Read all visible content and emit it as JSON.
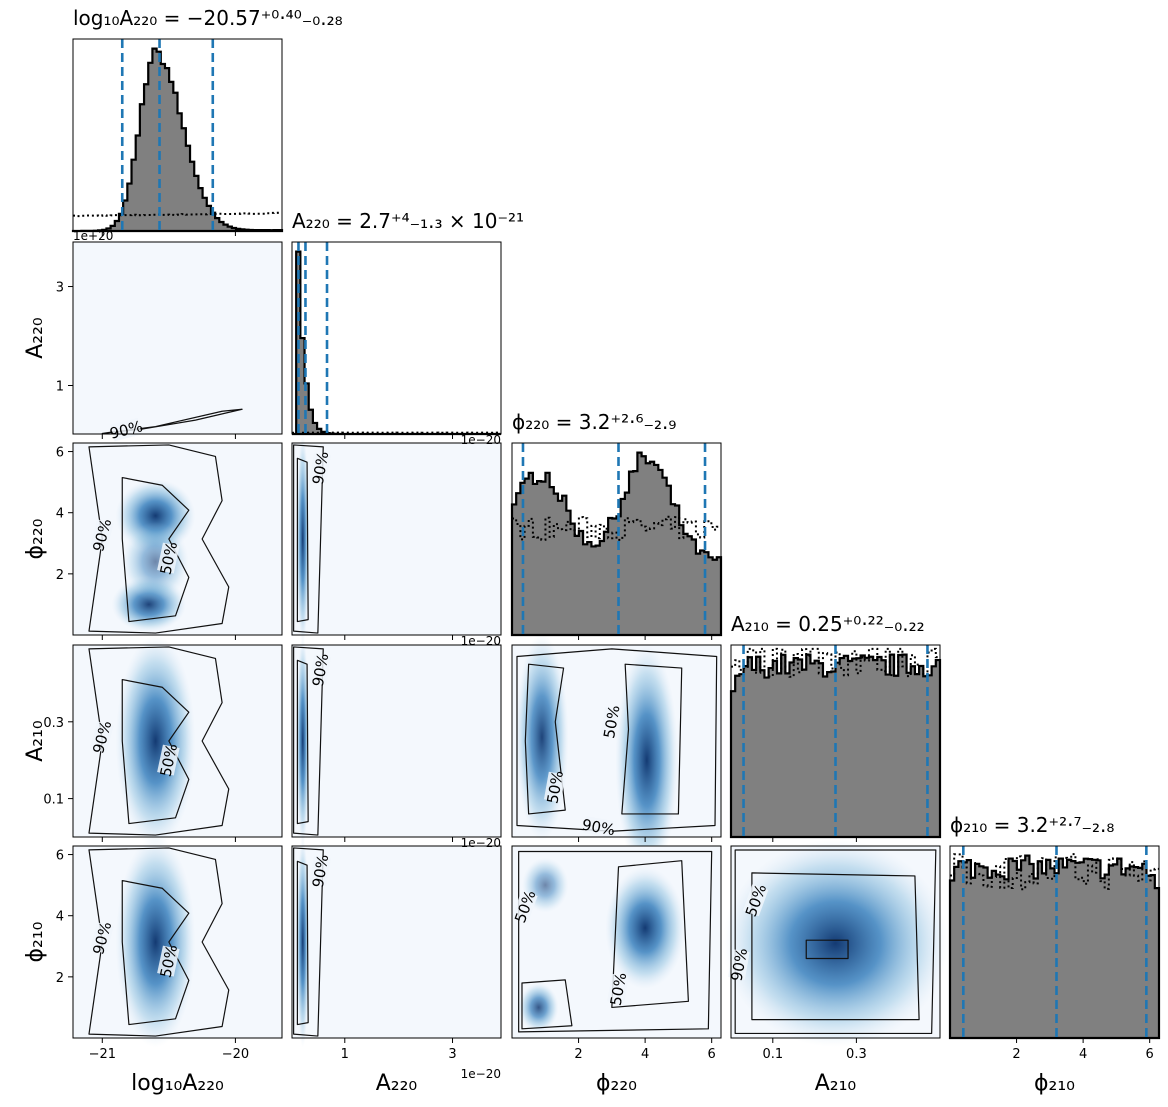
{
  "chart_data": {
    "type": "corner",
    "parameters": [
      {
        "key": "log10A220",
        "axis_label": "log₁₀A₂₂₀",
        "title": "log₁₀A₂₂₀ = −20.57⁺⁰·⁴⁰₋₀.₂₈",
        "range": [
          -21.22,
          -19.65
        ],
        "ticks": [
          -21,
          -20
        ],
        "tick_labels": [
          "−21",
          "−20"
        ],
        "median": -20.57,
        "q_low": -20.85,
        "q_high": -20.17,
        "offset_text": ""
      },
      {
        "key": "A220",
        "axis_label": "A₂₂₀",
        "title": "A₂₂₀ = 2.7⁺⁴₋₁.₃ × 10⁻²¹",
        "range": [
          0.02,
          3.9
        ],
        "ticks": [
          1,
          3
        ],
        "tick_labels": [
          "1",
          "3"
        ],
        "median": 0.27,
        "q_low": 0.14,
        "q_high": 0.67,
        "offset_text": "1e−20"
      },
      {
        "key": "phi220",
        "axis_label": "ϕ₂₂₀",
        "title": "ϕ₂₂₀ = 3.2⁺²·⁶₋₂.₉",
        "range": [
          0.0,
          6.28
        ],
        "ticks": [
          2,
          4,
          6
        ],
        "tick_labels": [
          "2",
          "4",
          "6"
        ],
        "median": 3.2,
        "q_low": 0.33,
        "q_high": 5.8,
        "offset_text": ""
      },
      {
        "key": "A210",
        "axis_label": "A₂₁₀",
        "title": "A₂₁₀ = 0.25⁺⁰·²²₋₀.₂₂",
        "range": [
          0.0,
          0.5
        ],
        "ticks": [
          0.1,
          0.3
        ],
        "tick_labels": [
          "0.1",
          "0.3"
        ],
        "median": 0.25,
        "q_low": 0.03,
        "q_high": 0.47,
        "offset_text": ""
      },
      {
        "key": "phi210",
        "axis_label": "ϕ₂₁₀",
        "title": "ϕ₂₁₀ = 3.2⁺²·⁷₋₂.₈",
        "range": [
          0.0,
          6.28
        ],
        "ticks": [
          2,
          4,
          6
        ],
        "tick_labels": [
          "2",
          "4",
          "6"
        ],
        "median": 3.2,
        "q_low": 0.4,
        "q_high": 5.9,
        "offset_text": ""
      }
    ],
    "row_ticks": [
      {
        "param": "A220",
        "ticks": [
          1,
          3
        ],
        "tick_labels": [
          "1",
          "3"
        ]
      },
      {
        "param": "phi220",
        "ticks": [
          2,
          4,
          6
        ],
        "tick_labels": [
          "2",
          "4",
          "6"
        ]
      },
      {
        "param": "A210",
        "ticks": [
          0.1,
          0.3
        ],
        "tick_labels": [
          "0.1",
          "0.3"
        ]
      },
      {
        "param": "phi210",
        "ticks": [
          2,
          4,
          6
        ],
        "tick_labels": [
          "2",
          "4",
          "6"
        ]
      }
    ],
    "contour_levels": [
      "50%",
      "90%"
    ],
    "stray_offset_texts": [
      "1e+20",
      "1e−20",
      "1e−20",
      "1e−20"
    ],
    "colors": {
      "hist_fill": "#808080",
      "quantile_line": "#1f77b4",
      "density": "Blues"
    }
  }
}
